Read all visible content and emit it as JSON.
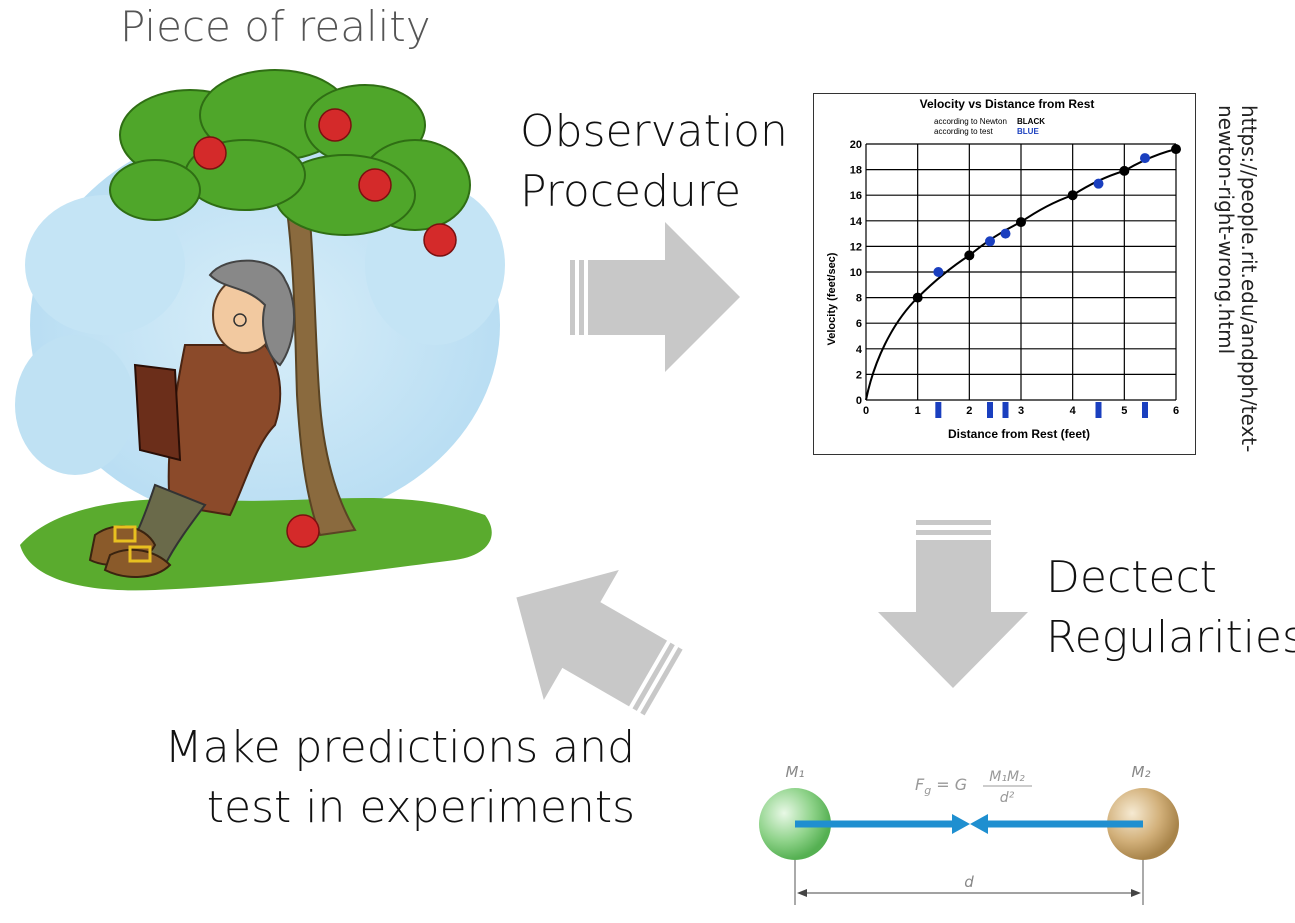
{
  "title": "Piece of reality",
  "observation": {
    "line1": "Observation",
    "line2": "Procedure"
  },
  "detect": {
    "line1": "Dectect",
    "line2": "Regularities"
  },
  "predict": {
    "line1": "Make predictions and",
    "line2": "test in experiments"
  },
  "url": {
    "line1": "https://people.rit.edu/andpph/text-",
    "line2": "newton-right-wrong.html"
  },
  "chart_data": {
    "type": "line",
    "title": "Velocity vs Distance from Rest",
    "legend": [
      {
        "label": "according to Newton",
        "key": "BLACK",
        "color": "#000000"
      },
      {
        "label": "according to test",
        "key": "BLUE",
        "color": "#1a3fbf"
      }
    ],
    "xlabel": "Distance from Rest (feet)",
    "ylabel": "Velocity  (feet/sec)",
    "xlim": [
      0,
      6
    ],
    "ylim": [
      0,
      20
    ],
    "xticks": [
      "0",
      "1",
      "2",
      "3",
      "4",
      "5",
      "6"
    ],
    "yticks": [
      "0",
      "2",
      "4",
      "6",
      "8",
      "10",
      "12",
      "14",
      "16",
      "18",
      "20"
    ],
    "series": [
      {
        "name": "according to Newton",
        "color": "#000000",
        "x": [
          1,
          2,
          3,
          4,
          5,
          6
        ],
        "y": [
          8,
          11.3,
          13.9,
          16,
          17.9,
          19.6
        ]
      },
      {
        "name": "according to test",
        "color": "#1a3fbf",
        "x": [
          1.4,
          2.4,
          2.7,
          4.5,
          5.4
        ],
        "y": [
          10,
          12.4,
          13,
          16.9,
          18.9
        ]
      }
    ]
  },
  "gravity": {
    "m1": "M₁",
    "m2": "M₂",
    "formula_left": "F",
    "formula_sub": "g",
    "formula_mid": " = G",
    "formula_num": "M₁M₂",
    "formula_den": "d²",
    "distance": "d"
  }
}
